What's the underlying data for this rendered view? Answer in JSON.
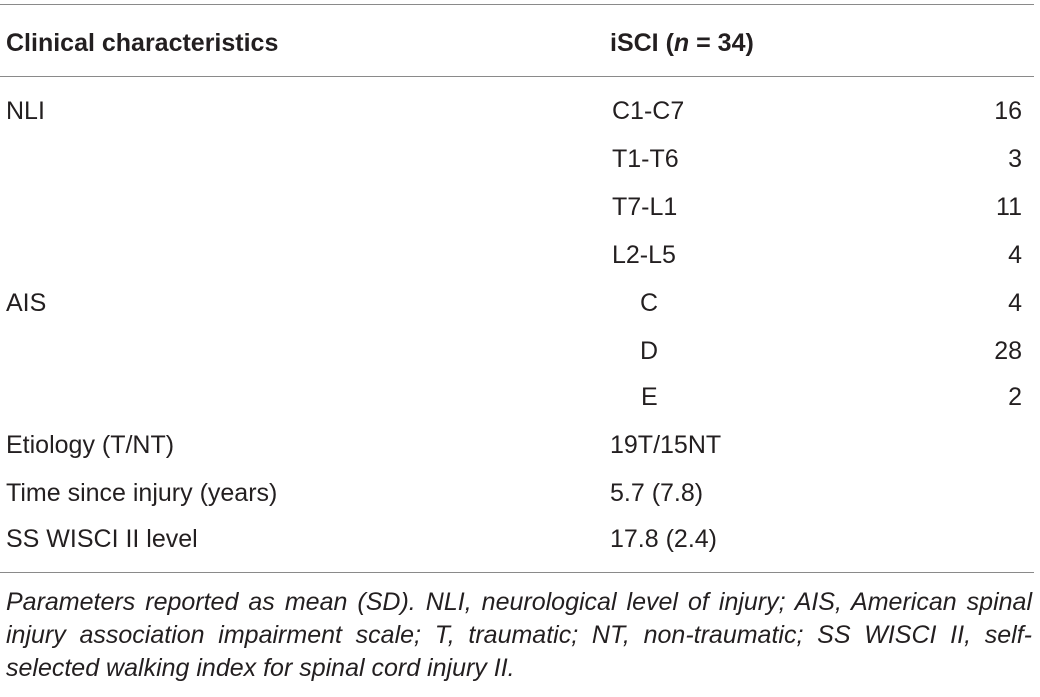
{
  "table": {
    "header": {
      "col1": "Clinical characteristics",
      "col2_prefix": "iSCI (",
      "col2_n": "n",
      "col2_suffix": " = 34)"
    },
    "rows": [
      {
        "label": "NLI",
        "sub": "C1-C7",
        "count": "16"
      },
      {
        "label": "",
        "sub": "T1-T6",
        "count": "3"
      },
      {
        "label": "",
        "sub": "T7-L1",
        "count": "11"
      },
      {
        "label": "",
        "sub": "L2-L5",
        "count": "4"
      },
      {
        "label": "AIS",
        "sub": "C",
        "count": "4"
      },
      {
        "label": "",
        "sub": "D",
        "count": "28"
      },
      {
        "label": "",
        "sub": "E",
        "count": "2"
      },
      {
        "label": "Etiology (T/NT)",
        "sub": "19T/15NT",
        "count": ""
      },
      {
        "label": "Time since injury (years)",
        "sub": "5.7 (7.8)",
        "count": ""
      },
      {
        "label": "SS WISCI II level",
        "sub": "17.8 (2.4)",
        "count": ""
      }
    ],
    "footnote": "Parameters reported as mean (SD). NLI, neurological level of injury; AIS, American spinal injury association impairment scale; T, traumatic; NT, non-traumatic; SS WISCI II, self-selected walking index for spinal cord injury II."
  }
}
